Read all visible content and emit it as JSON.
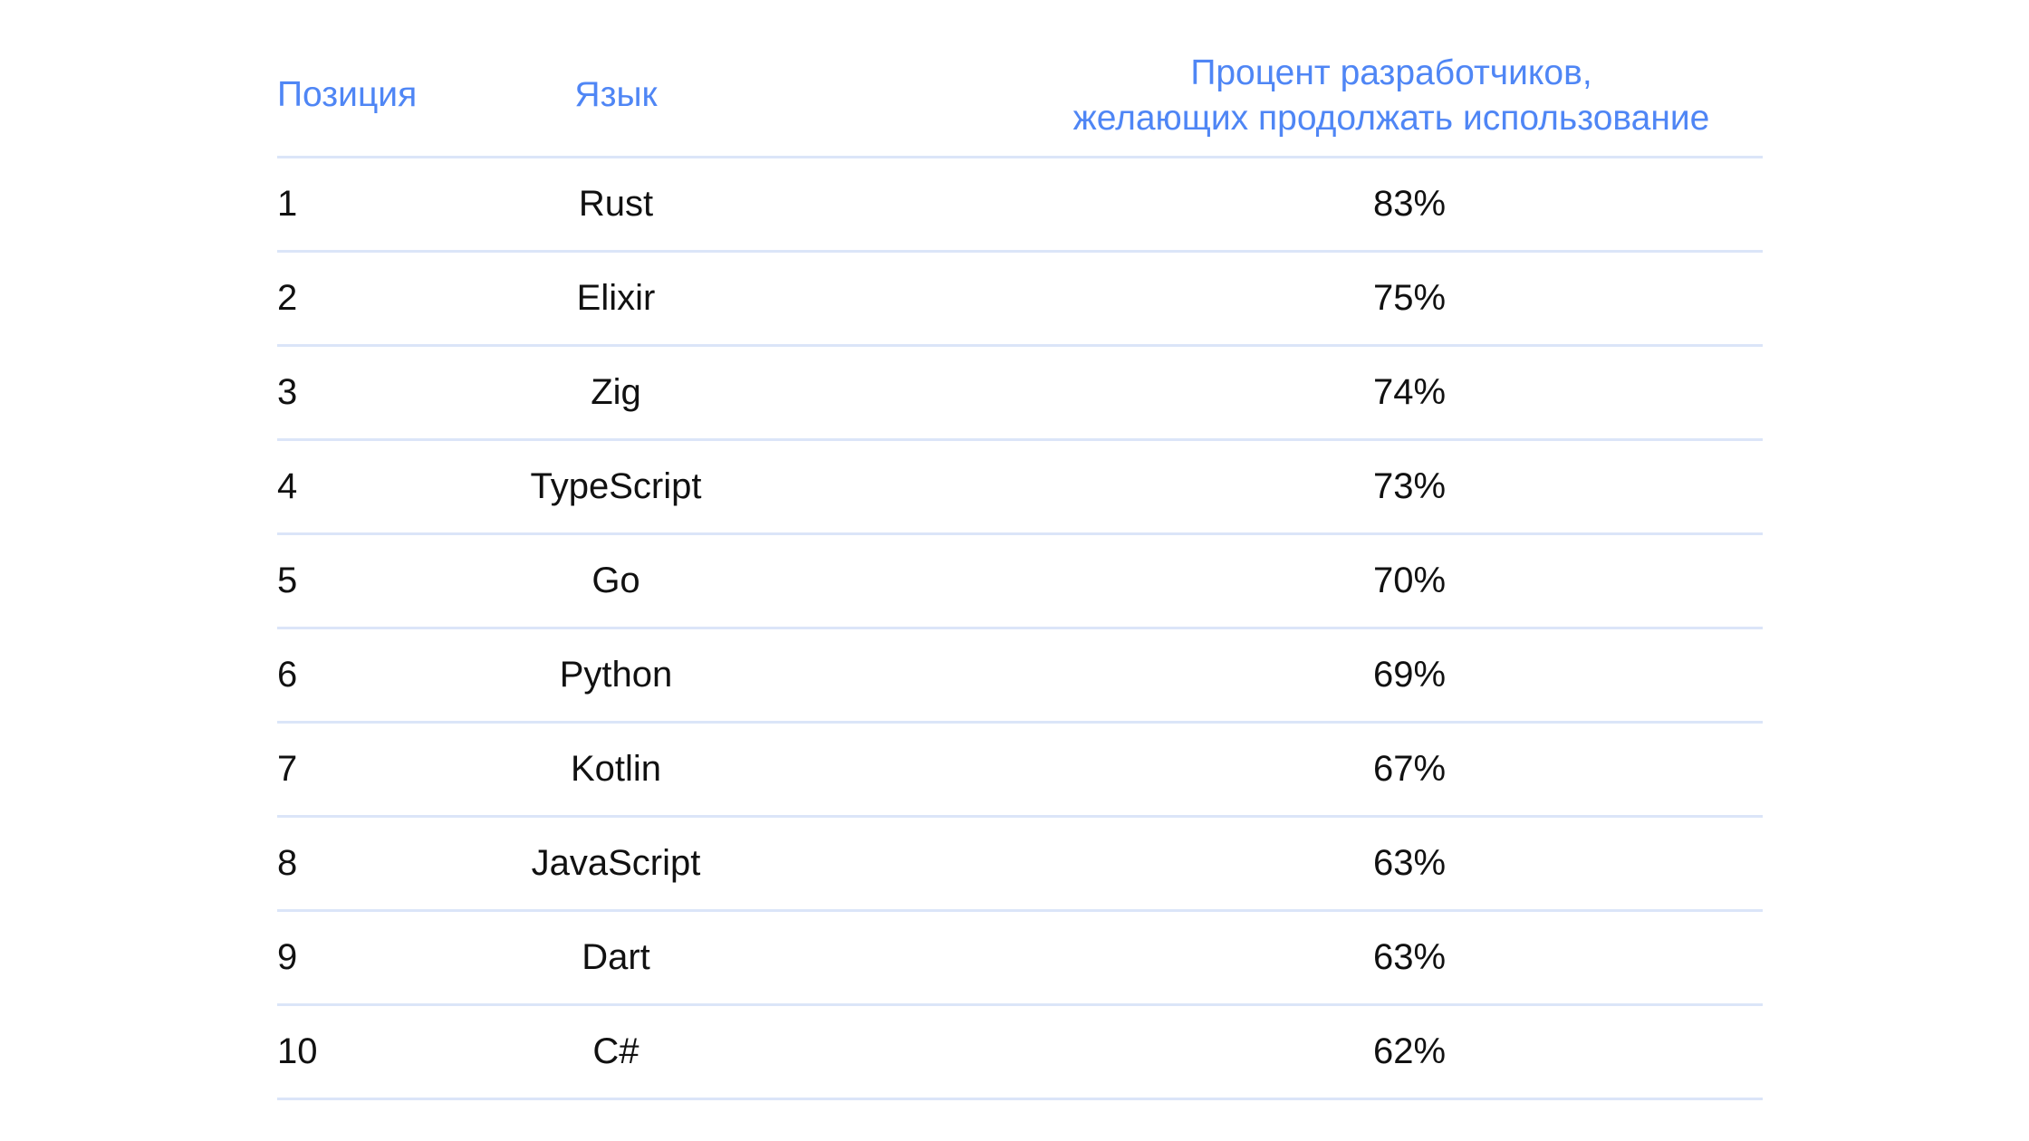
{
  "table": {
    "headers": {
      "position": "Позиция",
      "language": "Язык",
      "percent_line1": "Процент разработчиков,",
      "percent_line2": "желающих продолжать использование"
    },
    "rows": [
      {
        "position": "1",
        "language": "Rust",
        "percent": "83%"
      },
      {
        "position": "2",
        "language": "Elixir",
        "percent": "75%"
      },
      {
        "position": "3",
        "language": "Zig",
        "percent": "74%"
      },
      {
        "position": "4",
        "language": "TypeScript",
        "percent": "73%"
      },
      {
        "position": "5",
        "language": "Go",
        "percent": "70%"
      },
      {
        "position": "6",
        "language": "Python",
        "percent": "69%"
      },
      {
        "position": "7",
        "language": "Kotlin",
        "percent": "67%"
      },
      {
        "position": "8",
        "language": "JavaScript",
        "percent": "63%"
      },
      {
        "position": "9",
        "language": "Dart",
        "percent": "63%"
      },
      {
        "position": "10",
        "language": "C#",
        "percent": "62%"
      }
    ]
  },
  "colors": {
    "header_text": "#4f86f5",
    "divider": "#dbe5f8",
    "body_text": "#111111"
  }
}
